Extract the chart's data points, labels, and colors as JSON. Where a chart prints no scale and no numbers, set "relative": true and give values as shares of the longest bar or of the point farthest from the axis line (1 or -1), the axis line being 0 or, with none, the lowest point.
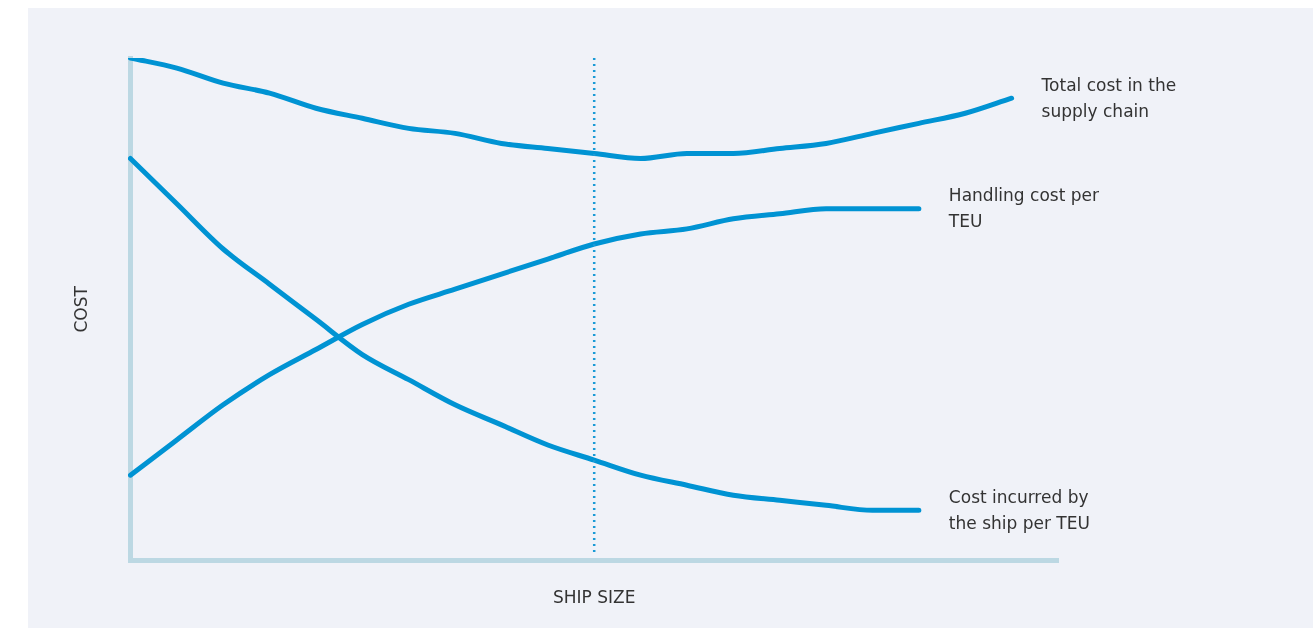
{
  "chart_data": {
    "type": "line",
    "relative": true,
    "xlabel": "SHIP SIZE",
    "ylabel": "COST",
    "grid": false,
    "legend": false,
    "marker": "none",
    "line_style": "solid",
    "categories": [
      null,
      null,
      null,
      null,
      null,
      null,
      null,
      null,
      null,
      null,
      null,
      null,
      null,
      null,
      null,
      null,
      null,
      null,
      null,
      null,
      null
    ],
    "series": [
      {
        "name": "Total cost in the supply chain",
        "color": "#0093d3",
        "values": [
          1.0,
          0.98,
          0.95,
          0.93,
          0.9,
          0.88,
          0.86,
          0.85,
          0.83,
          0.82,
          0.81,
          0.8,
          0.81,
          0.81,
          0.82,
          0.83,
          0.85,
          0.87,
          0.89,
          0.92,
          null
        ]
      },
      {
        "name": "Handling cost per TEU",
        "color": "#0093d3",
        "values": [
          0.17,
          0.24,
          0.31,
          0.37,
          0.42,
          0.47,
          0.51,
          0.54,
          0.57,
          0.6,
          0.63,
          0.65,
          0.66,
          0.68,
          0.69,
          0.7,
          0.7,
          0.7,
          null,
          null,
          null
        ]
      },
      {
        "name": "Cost incurred by the ship per TEU",
        "color": "#0093d3",
        "values": [
          0.8,
          0.71,
          0.62,
          0.55,
          0.48,
          0.41,
          0.36,
          0.31,
          0.27,
          0.23,
          0.2,
          0.17,
          0.15,
          0.13,
          0.12,
          0.11,
          0.1,
          0.1,
          null,
          null,
          null
        ]
      }
    ]
  }
}
